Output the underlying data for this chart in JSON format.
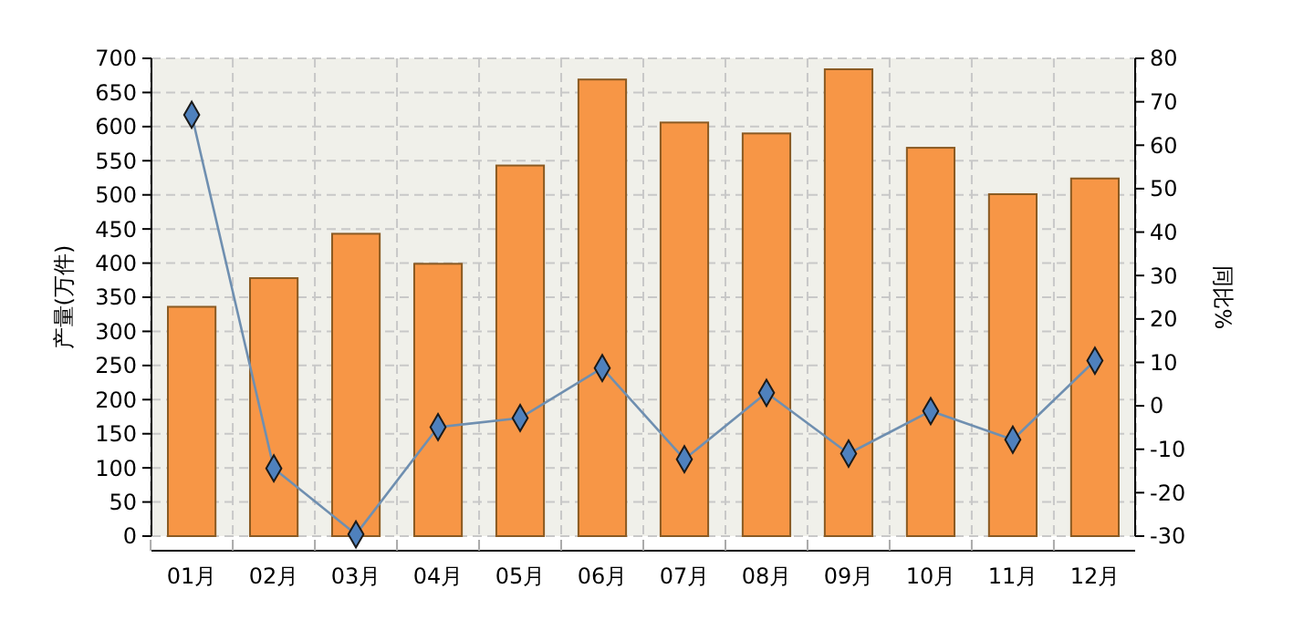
{
  "chart_data": {
    "type": "bar",
    "ylabel": "产量(万件)",
    "y2label": "同比%",
    "categories": [
      "01月",
      "02月",
      "03月",
      "04月",
      "05月",
      "06月",
      "07月",
      "08月",
      "09月",
      "10月",
      "11月",
      "12月"
    ],
    "series": [
      {
        "color": "#f79646",
        "values": [
          336,
          378,
          443,
          399,
          543,
          669,
          606,
          590,
          684,
          569,
          501,
          524
        ]
      },
      {
        "type": "line",
        "axis": "y2",
        "color": "#4f81bd",
        "marker": "diamond",
        "values": [
          67,
          -14.4,
          -29.6,
          -4.9,
          -2.8,
          8.7,
          -12.3,
          3,
          -11,
          -1.2,
          -7.8,
          10.4
        ]
      }
    ],
    "ylim": [
      0,
      700
    ],
    "yticks": [
      0,
      50,
      100,
      150,
      200,
      250,
      300,
      350,
      400,
      450,
      500,
      550,
      600,
      650,
      700
    ],
    "y2lim": [
      -30,
      80
    ],
    "y2ticks": [
      -30,
      -20,
      -10,
      0,
      10,
      20,
      30,
      40,
      50,
      60,
      70,
      80
    ],
    "grid": true
  }
}
